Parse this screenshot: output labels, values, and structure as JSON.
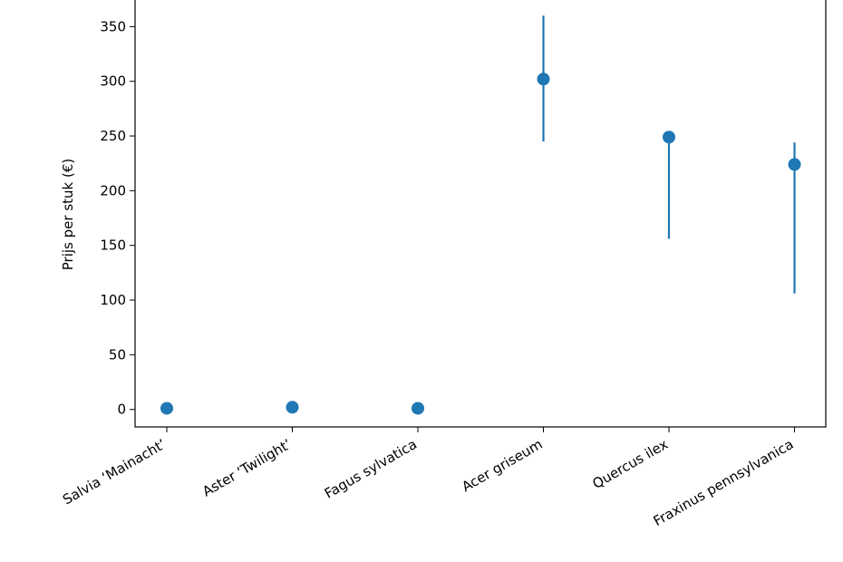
{
  "chart_data": {
    "type": "scatter",
    "title": "",
    "xlabel": "",
    "ylabel": "Prijs per stuk (€)",
    "ylim": [
      -16,
      376
    ],
    "yticks": [
      0,
      50,
      100,
      150,
      200,
      250,
      300,
      350
    ],
    "grid": false,
    "legend": "none",
    "marker_color": "#1f77b4",
    "categories": [
      "Salvia ‘Mainacht’",
      "Aster ‘Twilight’",
      "Fagus sylvatica",
      "Acer griseum",
      "Quercus ilex",
      "Fraxinus pennsylvanica"
    ],
    "points": [
      {
        "category": "Salvia ‘Mainacht’",
        "value": 1,
        "low": 1,
        "high": 1
      },
      {
        "category": "Aster ‘Twilight’",
        "value": 2,
        "low": 2,
        "high": 2
      },
      {
        "category": "Fagus sylvatica",
        "value": 1,
        "low": 1,
        "high": 1
      },
      {
        "category": "Acer griseum",
        "value": 302,
        "low": 245,
        "high": 360
      },
      {
        "category": "Quercus ilex",
        "value": 249,
        "low": 156,
        "high": 253
      },
      {
        "category": "Fraxinus pennsylvanica",
        "value": 224,
        "low": 106,
        "high": 244
      }
    ]
  }
}
